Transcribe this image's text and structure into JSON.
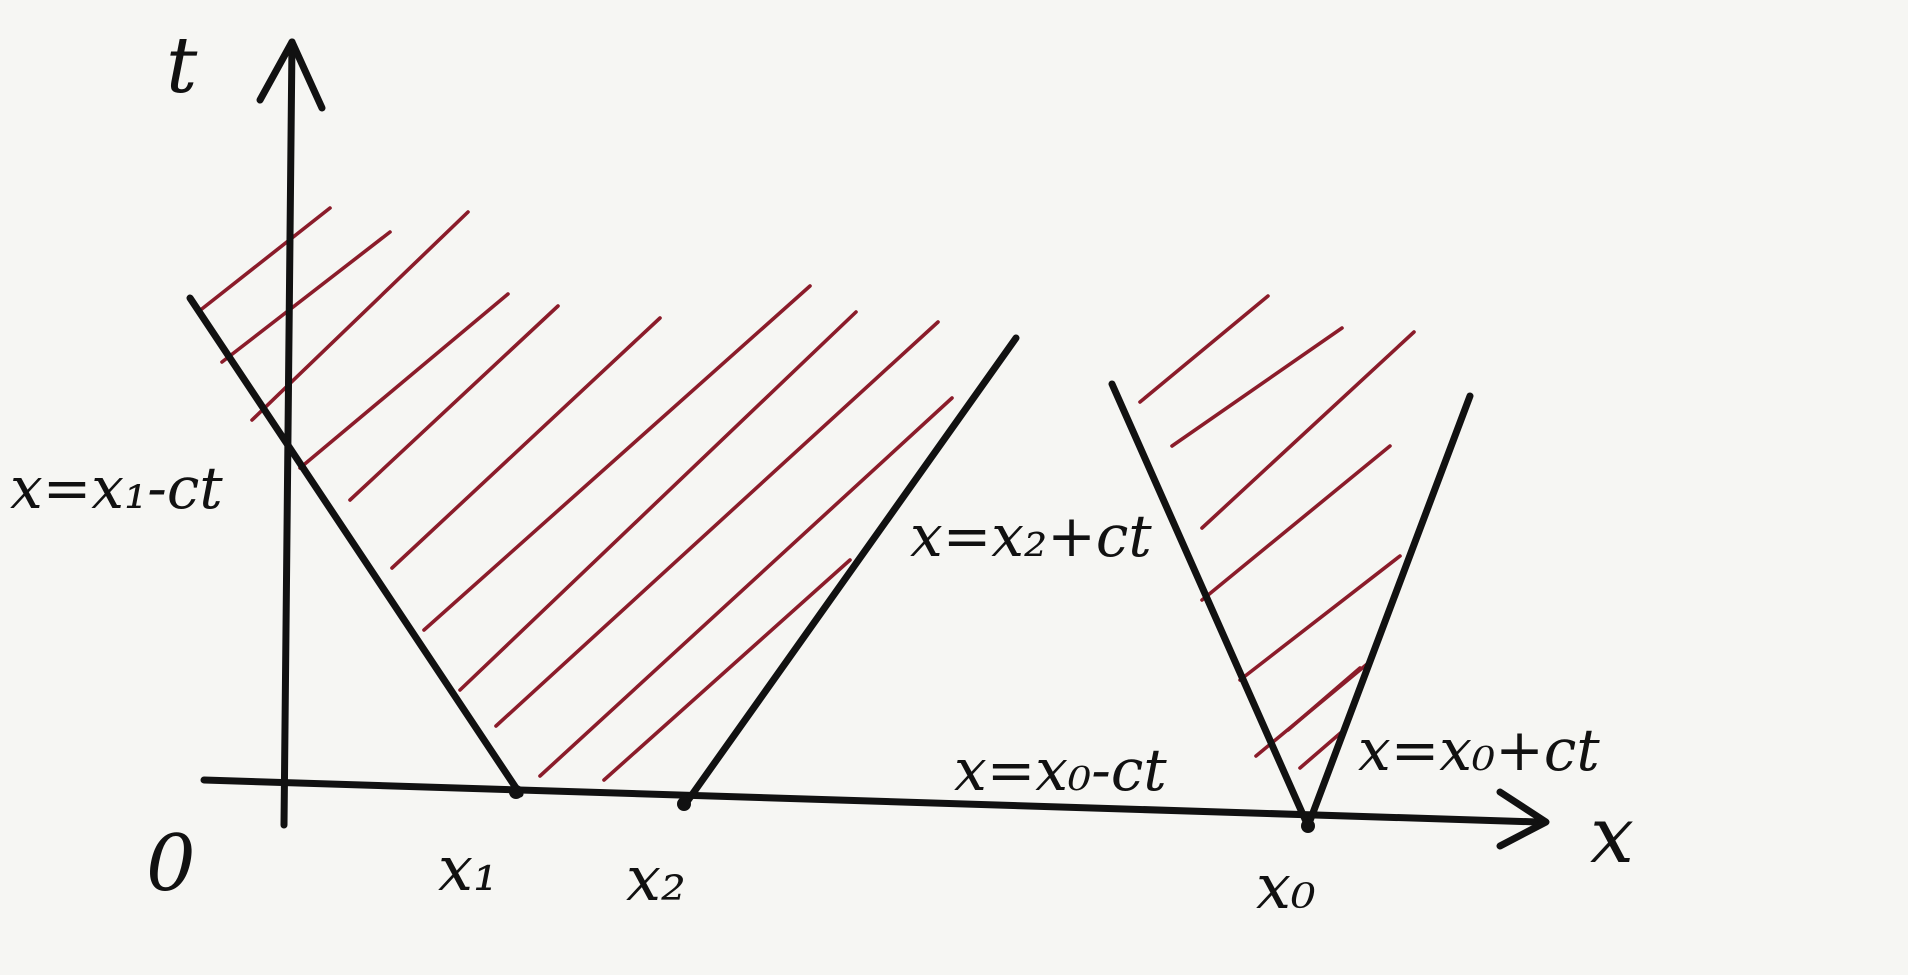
{
  "axes": {
    "t_label": "t",
    "x_label": "x",
    "origin_label": "0"
  },
  "ticks": {
    "x1": "x₁",
    "x2": "x₂",
    "x0": "x₀"
  },
  "lines": {
    "left_char": "x=x₁-ct",
    "right_char": "x=x₂+ct",
    "cone_left": "x=x₀-ct",
    "cone_right": "x=x₀+ct"
  },
  "colors": {
    "ink": "#111111",
    "hatch": "#8b1c2a",
    "paper": "#f6f6f3"
  }
}
